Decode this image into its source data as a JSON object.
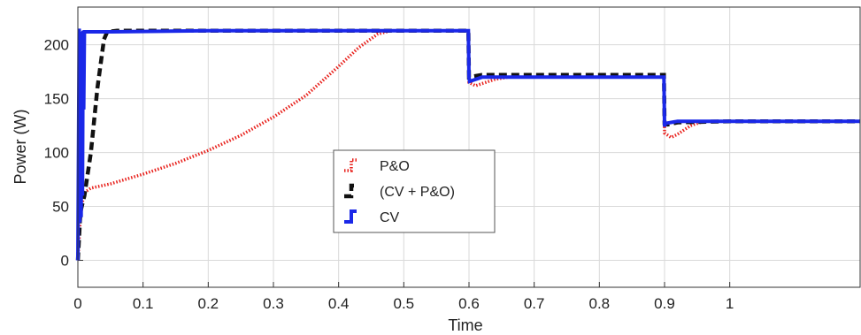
{
  "chart_data": {
    "type": "line",
    "xlabel": "Time",
    "ylabel": "Power (W)",
    "xlim": [
      0,
      1.2
    ],
    "ylim": [
      -25,
      235
    ],
    "xticks": [
      0,
      0.1,
      0.2,
      0.3,
      0.4,
      0.5,
      0.6,
      0.7,
      0.8,
      0.9,
      1
    ],
    "yticks": [
      0,
      50,
      100,
      150,
      200
    ],
    "grid": true,
    "legend_position": "center",
    "series": [
      {
        "name": "P&O",
        "color": "#e8211c",
        "style": "dotted",
        "x": [
          0.0,
          0.004,
          0.008,
          0.01,
          0.02,
          0.05,
          0.1,
          0.15,
          0.2,
          0.25,
          0.3,
          0.35,
          0.4,
          0.43,
          0.46,
          0.48,
          0.5,
          0.55,
          0.599,
          0.6,
          0.61,
          0.62,
          0.64,
          0.66,
          0.7,
          0.8,
          0.899,
          0.9,
          0.91,
          0.92,
          0.94,
          0.96,
          1.0,
          1.1,
          1.2
        ],
        "y": [
          0,
          40,
          58,
          63,
          67,
          71,
          80,
          90,
          102,
          116,
          133,
          153,
          180,
          197,
          210,
          213,
          213,
          213,
          213,
          165,
          162,
          164,
          168,
          170,
          170,
          170,
          170,
          118,
          114,
          117,
          125,
          129,
          129,
          129,
          129
        ]
      },
      {
        "name": "(CV + P&O)",
        "color": "#111111",
        "style": "dashed",
        "x": [
          0.0,
          0.004,
          0.008,
          0.01,
          0.02,
          0.03,
          0.04,
          0.045,
          0.06,
          0.2,
          0.4,
          0.599,
          0.6,
          0.61,
          0.62,
          0.7,
          0.8,
          0.899,
          0.9,
          0.905,
          0.92,
          1.0,
          1.2
        ],
        "y": [
          0,
          45,
          55,
          60,
          100,
          160,
          205,
          212,
          213,
          213,
          213,
          213,
          170,
          171,
          172,
          172,
          172,
          172,
          127,
          126,
          128,
          129,
          129
        ]
      },
      {
        "name": "CV",
        "color": "#1a28e8",
        "style": "solid",
        "x": [
          0.0,
          0.002,
          0.003,
          0.004,
          0.005,
          0.006,
          0.007,
          0.008,
          0.009,
          0.01,
          0.05,
          0.2,
          0.4,
          0.599,
          0.6,
          0.601,
          0.62,
          0.7,
          0.8,
          0.899,
          0.9,
          0.901,
          0.92,
          1.0,
          1.2
        ],
        "y": [
          0,
          215,
          35,
          210,
          40,
          212,
          60,
          213,
          140,
          212,
          212,
          213,
          213,
          213,
          170,
          166,
          170,
          170,
          170,
          170,
          124,
          127,
          129,
          129,
          129
        ]
      }
    ]
  }
}
